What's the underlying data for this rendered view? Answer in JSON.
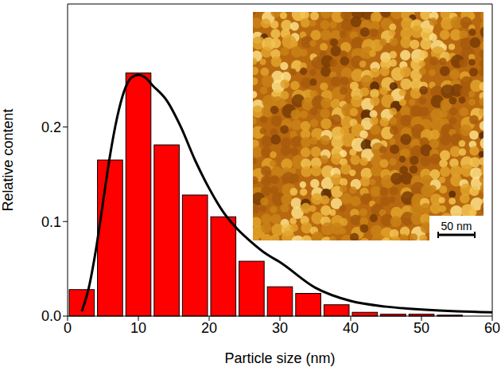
{
  "chart_data": {
    "type": "histogram",
    "xlabel": "Particle size (nm)",
    "ylabel": "Relative content",
    "bins": [
      0,
      4,
      8,
      12,
      16,
      20,
      24,
      28,
      32,
      36,
      40,
      44,
      48,
      52,
      56,
      60
    ],
    "counts": [
      0.028,
      0.165,
      0.257,
      0.181,
      0.128,
      0.105,
      0.058,
      0.031,
      0.024,
      0.012,
      0.004,
      0.002,
      0.002,
      0.001,
      0
    ],
    "color": "#ff0000",
    "curve": {
      "type": "line",
      "color": "#000000",
      "x": [
        2,
        3,
        4,
        5,
        6,
        7,
        8,
        9,
        10,
        11,
        12,
        14,
        16,
        18,
        20,
        22,
        24,
        26,
        28,
        30,
        35,
        40,
        45,
        50,
        55,
        60
      ],
      "values": [
        0.005,
        0.03,
        0.07,
        0.12,
        0.17,
        0.21,
        0.238,
        0.252,
        0.255,
        0.252,
        0.244,
        0.228,
        0.2,
        0.165,
        0.135,
        0.11,
        0.092,
        0.078,
        0.066,
        0.057,
        0.03,
        0.016,
        0.01,
        0.007,
        0.005,
        0.004
      ]
    },
    "xlim": [
      0,
      60
    ],
    "xticks": [
      0,
      10,
      20,
      30,
      40,
      50,
      60
    ],
    "ylim": [
      0,
      0.33
    ],
    "yticks": [
      {
        "value": 0,
        "label": "0.0"
      },
      {
        "value": 0.1,
        "label": "0.1"
      },
      {
        "value": 0.2,
        "label": "0.2"
      }
    ],
    "grid": false,
    "inset": {
      "scale_bar_label": "50 nm"
    }
  }
}
